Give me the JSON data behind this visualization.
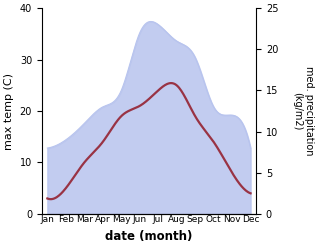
{
  "months": [
    "Jan",
    "Feb",
    "Mar",
    "Apr",
    "May",
    "Jun",
    "Jul",
    "Aug",
    "Sep",
    "Oct",
    "Nov",
    "Dec"
  ],
  "temp_C": [
    3,
    5,
    10,
    14,
    19,
    21,
    24,
    25,
    19,
    14,
    8,
    4
  ],
  "precip_kgm2": [
    8,
    9,
    11,
    13,
    15,
    22,
    23,
    21,
    19,
    13,
    12,
    8
  ],
  "temp_color": "#993344",
  "precip_fill_color": "#b8c4ee",
  "temp_ylim": [
    0,
    40
  ],
  "precip_ylim": [
    0,
    25
  ],
  "xlabel": "date (month)",
  "ylabel_left": "max temp (C)",
  "ylabel_right": "med. precipitation\n(kg/m2)",
  "bg_color": "#ffffff",
  "linewidth": 1.6,
  "yticks_left": [
    0,
    10,
    20,
    30,
    40
  ],
  "yticks_right": [
    0,
    5,
    10,
    15,
    20,
    25
  ]
}
